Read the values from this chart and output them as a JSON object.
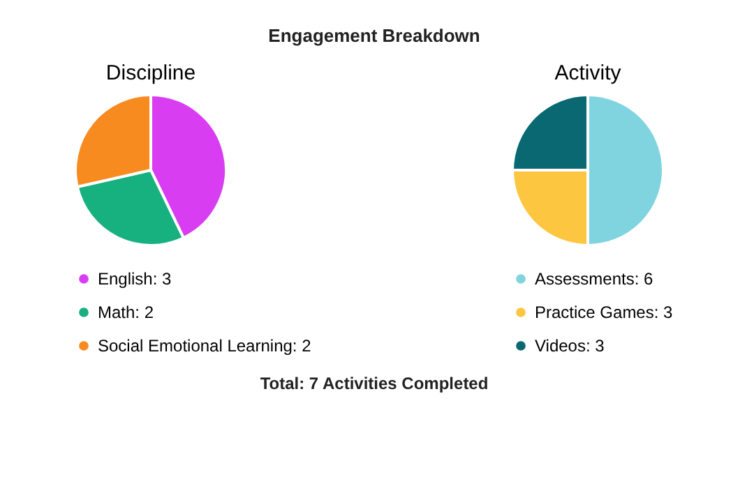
{
  "chart_data": [
    {
      "type": "pie",
      "title": "Discipline",
      "categories": [
        "English: 3",
        "Math: 2",
        "Social Emotional Learning: 2"
      ],
      "values": [
        3,
        2,
        2
      ],
      "colors": [
        "#d93df2",
        "#17b07f",
        "#f78b1f"
      ],
      "legend": "bottom"
    },
    {
      "type": "pie",
      "title": "Activity",
      "categories": [
        "Assessments: 6",
        "Practice Games: 3",
        "Videos: 3"
      ],
      "values": [
        6,
        3,
        3
      ],
      "colors": [
        "#80d4e0",
        "#fcc640",
        "#0a6872"
      ],
      "legend": "bottom"
    },
    {
      "type": "other",
      "title": "Engagement Breakdown",
      "annotations": [
        "Total: 7 Activities Completed"
      ]
    }
  ]
}
